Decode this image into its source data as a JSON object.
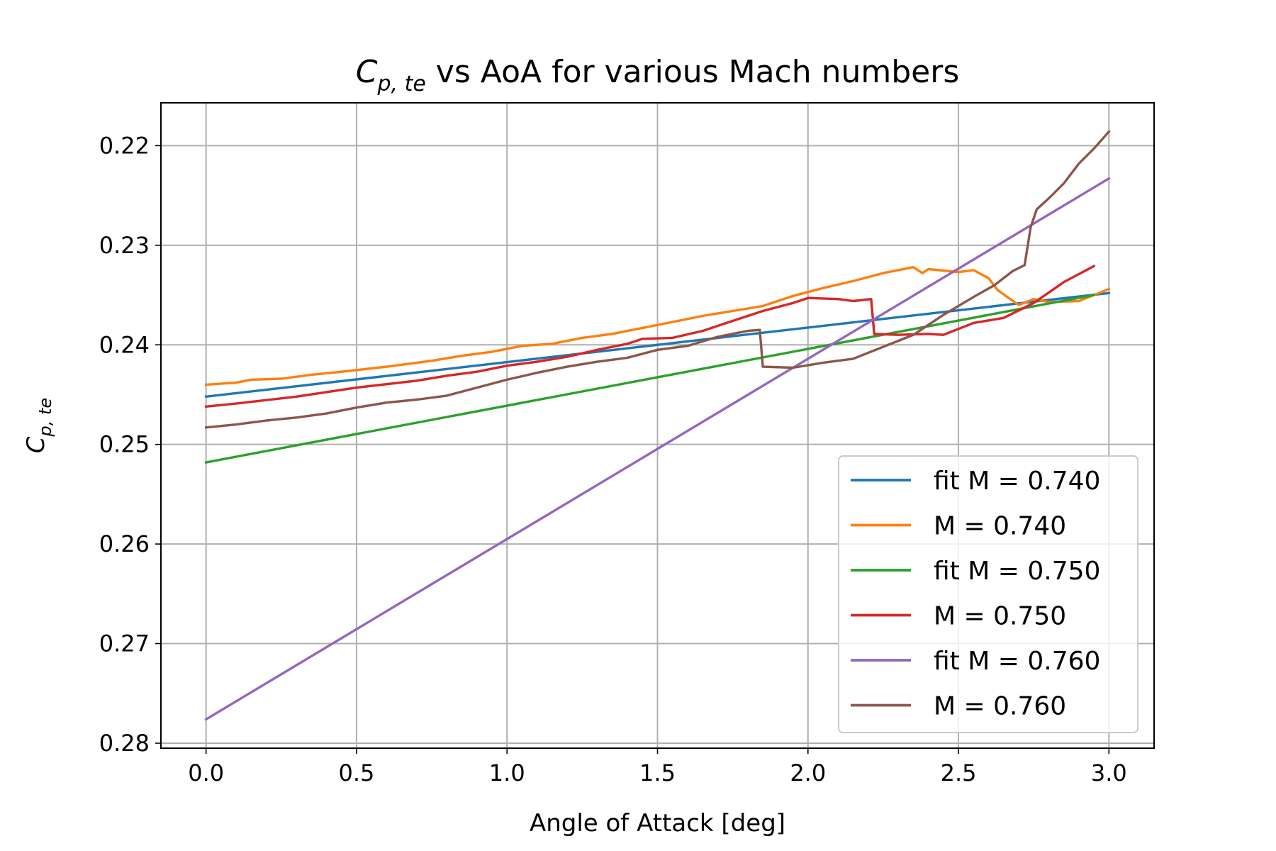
{
  "chart_data": {
    "type": "line",
    "title_main": "C",
    "title_sub": "p, te",
    "title_rest": " vs AoA for various Mach numbers",
    "xlabel": "Angle of Attack [deg]",
    "ylabel_main": "C",
    "ylabel_sub": "p, te",
    "xlim": [
      -0.15,
      3.15
    ],
    "ylim": [
      0.2805,
      0.2157
    ],
    "y_inverted": true,
    "grid": true,
    "legend_position": "lower-right",
    "x_ticks": [
      0.0,
      0.5,
      1.0,
      1.5,
      2.0,
      2.5,
      3.0
    ],
    "x_tick_labels": [
      "0.0",
      "0.5",
      "1.0",
      "1.5",
      "2.0",
      "2.5",
      "3.0"
    ],
    "y_ticks": [
      0.22,
      0.23,
      0.24,
      0.25,
      0.26,
      0.27,
      0.28
    ],
    "y_tick_labels": [
      "0.22",
      "0.23",
      "0.24",
      "0.25",
      "0.26",
      "0.27",
      "0.28"
    ],
    "series": [
      {
        "name": "fit M = 0.740",
        "color": "#1f77b4",
        "points": [
          [
            0.0,
            0.2452
          ],
          [
            3.0,
            0.2348
          ]
        ]
      },
      {
        "name": "M = 0.740",
        "color": "#ff7f0e",
        "points": [
          [
            0.0,
            0.244
          ],
          [
            0.1,
            0.2438
          ],
          [
            0.15,
            0.2435
          ],
          [
            0.25,
            0.2434
          ],
          [
            0.35,
            0.243
          ],
          [
            0.45,
            0.2427
          ],
          [
            0.6,
            0.2422
          ],
          [
            0.75,
            0.2416
          ],
          [
            0.85,
            0.2411
          ],
          [
            0.95,
            0.2407
          ],
          [
            1.05,
            0.2401
          ],
          [
            1.15,
            0.2399
          ],
          [
            1.25,
            0.2393
          ],
          [
            1.35,
            0.2389
          ],
          [
            1.45,
            0.2383
          ],
          [
            1.55,
            0.2377
          ],
          [
            1.65,
            0.2371
          ],
          [
            1.75,
            0.2366
          ],
          [
            1.85,
            0.2361
          ],
          [
            1.95,
            0.2351
          ],
          [
            2.05,
            0.2343
          ],
          [
            2.15,
            0.2336
          ],
          [
            2.25,
            0.2328
          ],
          [
            2.35,
            0.2322
          ],
          [
            2.38,
            0.2328
          ],
          [
            2.4,
            0.2324
          ],
          [
            2.5,
            0.2327
          ],
          [
            2.55,
            0.2325
          ],
          [
            2.6,
            0.2333
          ],
          [
            2.63,
            0.2345
          ],
          [
            2.7,
            0.236
          ],
          [
            2.75,
            0.2354
          ],
          [
            2.8,
            0.2357
          ],
          [
            2.9,
            0.2356
          ],
          [
            3.0,
            0.2344
          ]
        ]
      },
      {
        "name": "fit M = 0.750",
        "color": "#2ca02c",
        "points": [
          [
            0.0,
            0.2518
          ],
          [
            2.95,
            0.235
          ]
        ]
      },
      {
        "name": "M = 0.750",
        "color": "#d62728",
        "points": [
          [
            0.0,
            0.2462
          ],
          [
            0.1,
            0.2459
          ],
          [
            0.3,
            0.2452
          ],
          [
            0.5,
            0.2443
          ],
          [
            0.7,
            0.2436
          ],
          [
            0.8,
            0.2431
          ],
          [
            0.9,
            0.2427
          ],
          [
            1.0,
            0.2421
          ],
          [
            1.1,
            0.2417
          ],
          [
            1.2,
            0.2412
          ],
          [
            1.3,
            0.2405
          ],
          [
            1.4,
            0.2399
          ],
          [
            1.45,
            0.2394
          ],
          [
            1.55,
            0.2393
          ],
          [
            1.65,
            0.2386
          ],
          [
            1.75,
            0.2376
          ],
          [
            1.85,
            0.2366
          ],
          [
            1.95,
            0.2358
          ],
          [
            2.0,
            0.2353
          ],
          [
            2.1,
            0.2354
          ],
          [
            2.15,
            0.2356
          ],
          [
            2.21,
            0.2354
          ],
          [
            2.22,
            0.2389
          ],
          [
            2.3,
            0.239
          ],
          [
            2.4,
            0.2389
          ],
          [
            2.45,
            0.239
          ],
          [
            2.55,
            0.2378
          ],
          [
            2.65,
            0.2373
          ],
          [
            2.75,
            0.2358
          ],
          [
            2.85,
            0.2337
          ],
          [
            2.95,
            0.2321
          ]
        ]
      },
      {
        "name": "fit M = 0.760",
        "color": "#9467bd",
        "points": [
          [
            0.0,
            0.2776
          ],
          [
            3.0,
            0.2233
          ]
        ]
      },
      {
        "name": "M = 0.760",
        "color": "#8c564b",
        "points": [
          [
            0.0,
            0.2483
          ],
          [
            0.1,
            0.248
          ],
          [
            0.2,
            0.2476
          ],
          [
            0.3,
            0.2473
          ],
          [
            0.4,
            0.2469
          ],
          [
            0.5,
            0.2463
          ],
          [
            0.6,
            0.2458
          ],
          [
            0.7,
            0.2455
          ],
          [
            0.8,
            0.2451
          ],
          [
            0.9,
            0.2443
          ],
          [
            1.0,
            0.2435
          ],
          [
            1.1,
            0.2428
          ],
          [
            1.2,
            0.2422
          ],
          [
            1.3,
            0.2417
          ],
          [
            1.4,
            0.2413
          ],
          [
            1.5,
            0.2405
          ],
          [
            1.6,
            0.2401
          ],
          [
            1.7,
            0.2392
          ],
          [
            1.8,
            0.2386
          ],
          [
            1.84,
            0.2385
          ],
          [
            1.85,
            0.2422
          ],
          [
            1.95,
            0.2423
          ],
          [
            2.05,
            0.2418
          ],
          [
            2.15,
            0.2414
          ],
          [
            2.25,
            0.2402
          ],
          [
            2.35,
            0.239
          ],
          [
            2.45,
            0.237
          ],
          [
            2.55,
            0.2352
          ],
          [
            2.62,
            0.234
          ],
          [
            2.68,
            0.2326
          ],
          [
            2.72,
            0.232
          ],
          [
            2.74,
            0.2282
          ],
          [
            2.76,
            0.2264
          ],
          [
            2.8,
            0.2253
          ],
          [
            2.85,
            0.2238
          ],
          [
            2.9,
            0.2218
          ],
          [
            2.95,
            0.2203
          ],
          [
            3.0,
            0.2186
          ]
        ]
      }
    ]
  }
}
